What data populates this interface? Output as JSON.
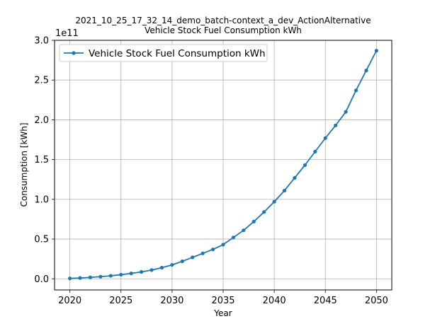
{
  "chart_data": {
    "type": "line",
    "title": "2021_10_25_17_32_14_demo_batch-context_a_dev_ActionAlternative",
    "subtitle": "Vehicle Stock Fuel Consumption kWh",
    "xlabel": "Year",
    "ylabel": "Consumption [kWh]",
    "y_offset_label": "1e11",
    "xlim": [
      2018.5,
      2051.5
    ],
    "ylim": [
      -0.14,
      3.0
    ],
    "x_ticks": [
      2020,
      2025,
      2030,
      2035,
      2040,
      2045,
      2050
    ],
    "x_tick_labels": [
      "2020",
      "2025",
      "2030",
      "2035",
      "2040",
      "2045",
      "2050"
    ],
    "y_ticks": [
      0.0,
      0.5,
      1.0,
      1.5,
      2.0,
      2.5,
      3.0
    ],
    "y_tick_labels": [
      "0.0",
      "0.5",
      "1.0",
      "1.5",
      "2.0",
      "2.5",
      "3.0"
    ],
    "grid": true,
    "legend_position": "top-left",
    "series": [
      {
        "name": "Vehicle Stock Fuel Consumption kWh",
        "color": "#1f77b4",
        "x": [
          2020,
          2021,
          2022,
          2023,
          2024,
          2025,
          2026,
          2027,
          2028,
          2029,
          2030,
          2031,
          2032,
          2033,
          2034,
          2035,
          2036,
          2037,
          2038,
          2039,
          2040,
          2041,
          2042,
          2043,
          2044,
          2045,
          2046,
          2047,
          2048,
          2049,
          2050
        ],
        "y": [
          0.005,
          0.01,
          0.018,
          0.027,
          0.038,
          0.052,
          0.068,
          0.087,
          0.11,
          0.14,
          0.175,
          0.22,
          0.27,
          0.32,
          0.37,
          0.43,
          0.52,
          0.61,
          0.72,
          0.84,
          0.97,
          1.11,
          1.27,
          1.43,
          1.6,
          1.77,
          1.93,
          2.1,
          2.37,
          2.62,
          2.87
        ]
      }
    ]
  }
}
